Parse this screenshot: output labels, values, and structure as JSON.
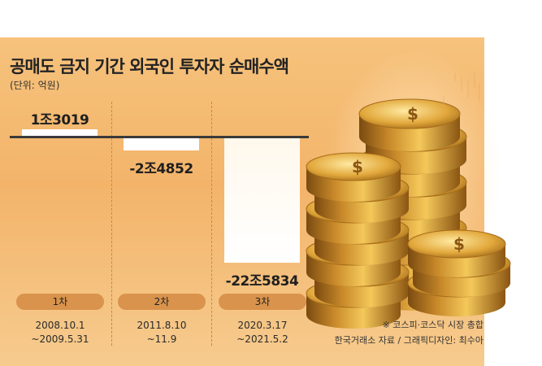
{
  "title": "공매도 금지 기간 외국인 투자자 순매수액",
  "unit": "(단위: 억원)",
  "chart_data": {
    "type": "bar",
    "categories": [
      "1차",
      "2차",
      "3차"
    ],
    "values": [
      13019,
      -24852,
      -225834
    ],
    "value_labels": [
      "1조3019",
      "-2조4852",
      "-22조5834"
    ],
    "periods": [
      "2008.10.1\n~2009.5.31",
      "2011.8.10\n~11.9",
      "2020.3.17\n~2021.5.2"
    ],
    "ylim": [
      -225834,
      13019
    ]
  },
  "notes": {
    "market": "※ 코스피·코스닥 시장 총합",
    "source": "한국거래소 자료 / 그래픽디자인: 최수아"
  },
  "colors": {
    "panel": "#f4b86e",
    "bar": "#ffffff",
    "badge": "#d9934c"
  }
}
